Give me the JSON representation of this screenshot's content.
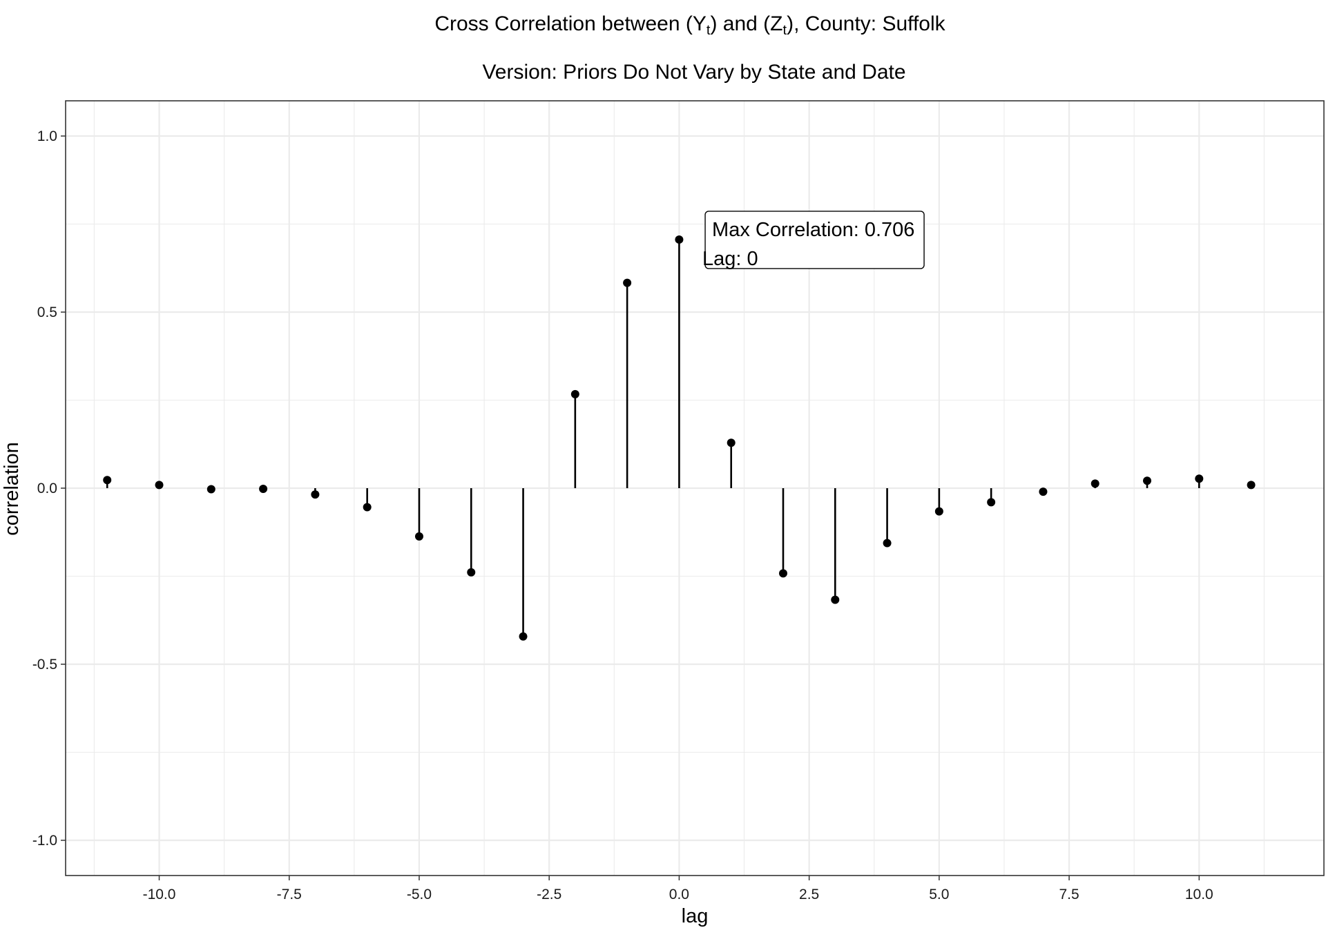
{
  "chart_data": {
    "type": "lollipop",
    "title": {
      "prefix": "Cross Correlation between ",
      "series1_symbol": "Y",
      "series1_subscript": "t",
      "joiner": " and ",
      "series2_symbol": "Z",
      "series2_subscript": "t",
      "suffix": ", County: Suffolk"
    },
    "subtitle": "Version: Priors Do Not Vary by State and Date",
    "xlabel": "lag",
    "ylabel": "correlation",
    "xlim": [
      -11.8,
      12.4
    ],
    "ylim": [
      -1.1,
      1.1
    ],
    "x_ticks": [
      -10.0,
      -7.5,
      -5.0,
      -2.5,
      0.0,
      2.5,
      5.0,
      7.5,
      10.0
    ],
    "x_tick_labels": [
      "-10.0",
      "-7.5",
      "-5.0",
      "-2.5",
      "0.0",
      "2.5",
      "5.0",
      "7.5",
      "10.0"
    ],
    "y_ticks": [
      -1.0,
      -0.5,
      0.0,
      0.5,
      1.0
    ],
    "y_tick_labels": [
      "-1.0",
      "-0.5",
      "0.0",
      "0.5",
      "1.0"
    ],
    "grid": true,
    "x": [
      -11,
      -10,
      -9,
      -8,
      -7,
      -6,
      -5,
      -4,
      -3,
      -2,
      -1,
      0,
      1,
      2,
      3,
      4,
      5,
      6,
      7,
      8,
      9,
      10,
      11
    ],
    "values": [
      0.023,
      0.009,
      -0.003,
      -0.002,
      -0.018,
      -0.054,
      -0.137,
      -0.239,
      -0.421,
      0.267,
      0.583,
      0.706,
      0.129,
      -0.242,
      -0.317,
      -0.156,
      -0.066,
      -0.04,
      -0.01,
      0.013,
      0.021,
      0.027,
      0.009
    ],
    "annotation": {
      "line1": "Max Correlation: 0.706",
      "line2": "Lag: 0",
      "x": 0.5,
      "y": 0.706
    },
    "colors": {
      "background": "#ffffff",
      "grid": "#ebebeb",
      "panel_border": "#333333",
      "stem": "#000000",
      "point": "#000000"
    }
  }
}
